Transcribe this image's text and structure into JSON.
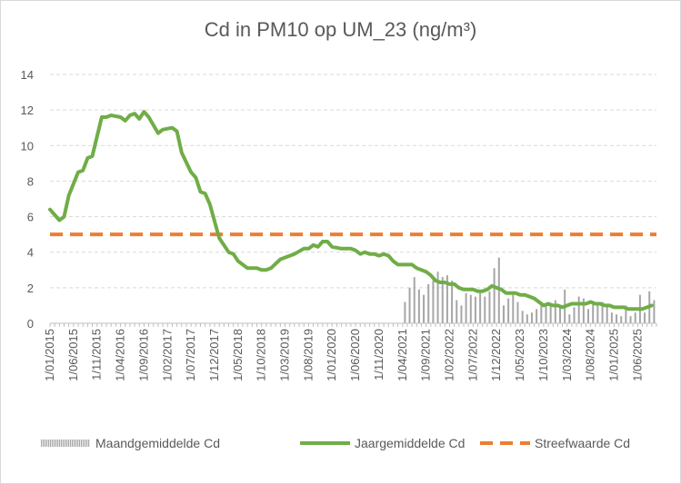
{
  "chart_data": {
    "type": "line",
    "title": "Cd in PM10 op UM_23 (ng/m³)",
    "xlabel": "",
    "ylabel": "",
    "ylim": [
      0,
      14
    ],
    "yticks": [
      0,
      2,
      4,
      6,
      8,
      10,
      12,
      14
    ],
    "grid": true,
    "legend_position": "bottom",
    "x_tick_labels": [
      "1/01/2015",
      "1/06/2015",
      "1/11/2015",
      "1/04/2016",
      "1/09/2016",
      "1/02/2017",
      "1/07/2017",
      "1/12/2017",
      "1/05/2018",
      "1/10/2018",
      "1/03/2019",
      "1/08/2019",
      "1/01/2020",
      "1/06/2020",
      "1/11/2020",
      "1/04/2021",
      "1/09/2021",
      "1/02/2022",
      "1/07/2022",
      "1/12/2022",
      "1/05/2023",
      "1/10/2023",
      "1/03/2024",
      "1/08/2024",
      "1/01/2025",
      "1/06/2025"
    ],
    "x_start": "2015-01",
    "x_end": "2025-09",
    "series": [
      {
        "name": "Maandgemiddelde Cd",
        "kind": "bar",
        "color": "#a6a6a6",
        "points": [
          [
            "2021-04",
            1.2
          ],
          [
            "2021-05",
            2.0
          ],
          [
            "2021-06",
            2.6
          ],
          [
            "2021-07",
            1.9
          ],
          [
            "2021-08",
            1.6
          ],
          [
            "2021-09",
            2.2
          ],
          [
            "2021-10",
            2.4
          ],
          [
            "2021-11",
            2.9
          ],
          [
            "2021-12",
            2.6
          ],
          [
            "2022-01",
            2.7
          ],
          [
            "2022-02",
            2.4
          ],
          [
            "2022-03",
            1.3
          ],
          [
            "2022-04",
            1.0
          ],
          [
            "2022-05",
            1.7
          ],
          [
            "2022-06",
            1.6
          ],
          [
            "2022-07",
            1.5
          ],
          [
            "2022-08",
            1.7
          ],
          [
            "2022-09",
            1.5
          ],
          [
            "2022-10",
            1.8
          ],
          [
            "2022-11",
            3.1
          ],
          [
            "2022-12",
            3.7
          ],
          [
            "2022-13",
            1.0
          ],
          [
            "2023-01",
            1.0
          ],
          [
            "2023-02",
            1.4
          ],
          [
            "2023-03",
            1.7
          ],
          [
            "2023-04",
            1.2
          ],
          [
            "2023-05",
            0.7
          ],
          [
            "2023-06",
            0.5
          ],
          [
            "2023-07",
            0.6
          ],
          [
            "2023-08",
            0.8
          ],
          [
            "2023-09",
            1.1
          ],
          [
            "2023-10",
            1.0
          ],
          [
            "2023-11",
            1.1
          ],
          [
            "2023-12",
            1.3
          ],
          [
            "2024-01",
            1.0
          ],
          [
            "2024-02",
            1.9
          ],
          [
            "2024-03",
            0.5
          ],
          [
            "2024-04",
            0.9
          ],
          [
            "2024-05",
            1.5
          ],
          [
            "2024-06",
            1.4
          ],
          [
            "2024-07",
            0.8
          ],
          [
            "2024-08",
            1.1
          ],
          [
            "2024-09",
            1.0
          ],
          [
            "2024-10",
            1.2
          ],
          [
            "2024-11",
            1.0
          ],
          [
            "2024-12",
            0.6
          ],
          [
            "2025-01",
            0.5
          ],
          [
            "2025-02",
            0.4
          ],
          [
            "2025-03",
            1.0
          ],
          [
            "2025-04",
            0.4
          ],
          [
            "2025-05",
            0.6
          ],
          [
            "2025-06",
            1.6
          ],
          [
            "2025-07",
            0.6
          ],
          [
            "2025-08",
            1.8
          ],
          [
            "2025-09",
            1.3
          ]
        ]
      },
      {
        "name": "Jaargemiddelde Cd",
        "kind": "line",
        "color": "#70ad47",
        "points": [
          [
            "2015-01",
            6.4
          ],
          [
            "2015-03",
            5.8
          ],
          [
            "2015-04",
            6.0
          ],
          [
            "2015-05",
            7.2
          ],
          [
            "2015-07",
            8.5
          ],
          [
            "2015-08",
            8.6
          ],
          [
            "2015-09",
            9.3
          ],
          [
            "2015-10",
            9.4
          ],
          [
            "2015-12",
            11.6
          ],
          [
            "2016-01",
            11.6
          ],
          [
            "2016-02",
            11.7
          ],
          [
            "2016-04",
            11.6
          ],
          [
            "2016-05",
            11.4
          ],
          [
            "2016-06",
            11.7
          ],
          [
            "2016-07",
            11.8
          ],
          [
            "2016-08",
            11.5
          ],
          [
            "2016-09",
            11.9
          ],
          [
            "2016-10",
            11.6
          ],
          [
            "2016-12",
            10.7
          ],
          [
            "2017-01",
            10.9
          ],
          [
            "2017-03",
            11.0
          ],
          [
            "2017-04",
            10.8
          ],
          [
            "2017-05",
            9.6
          ],
          [
            "2017-07",
            8.5
          ],
          [
            "2017-08",
            8.2
          ],
          [
            "2017-09",
            7.4
          ],
          [
            "2017-10",
            7.3
          ],
          [
            "2017-11",
            6.7
          ],
          [
            "2018-01",
            4.8
          ],
          [
            "2018-03",
            4.0
          ],
          [
            "2018-04",
            3.9
          ],
          [
            "2018-05",
            3.5
          ],
          [
            "2018-07",
            3.1
          ],
          [
            "2018-08",
            3.1
          ],
          [
            "2018-09",
            3.1
          ],
          [
            "2018-10",
            3.0
          ],
          [
            "2018-11",
            3.0
          ],
          [
            "2018-12",
            3.1
          ],
          [
            "2019-02",
            3.6
          ],
          [
            "2019-03",
            3.7
          ],
          [
            "2019-04",
            3.8
          ],
          [
            "2019-05",
            3.9
          ],
          [
            "2019-07",
            4.2
          ],
          [
            "2019-08",
            4.2
          ],
          [
            "2019-09",
            4.4
          ],
          [
            "2019-10",
            4.3
          ],
          [
            "2019-11",
            4.6
          ],
          [
            "2019-12",
            4.6
          ],
          [
            "2020-01",
            4.3
          ],
          [
            "2020-03",
            4.2
          ],
          [
            "2020-04",
            4.2
          ],
          [
            "2020-05",
            4.2
          ],
          [
            "2020-06",
            4.1
          ],
          [
            "2020-07",
            3.9
          ],
          [
            "2020-08",
            4.0
          ],
          [
            "2020-09",
            3.9
          ],
          [
            "2020-10",
            3.9
          ],
          [
            "2020-11",
            3.8
          ],
          [
            "2020-12",
            3.9
          ],
          [
            "2021-01",
            3.8
          ],
          [
            "2021-02",
            3.5
          ],
          [
            "2021-03",
            3.3
          ],
          [
            "2021-04",
            3.3
          ],
          [
            "2021-05",
            3.3
          ],
          [
            "2021-06",
            3.3
          ],
          [
            "2021-07",
            3.1
          ],
          [
            "2021-09",
            2.9
          ],
          [
            "2021-10",
            2.7
          ],
          [
            "2021-11",
            2.4
          ],
          [
            "2021-12",
            2.3
          ],
          [
            "2022-01",
            2.3
          ],
          [
            "2022-02",
            2.2
          ],
          [
            "2022-03",
            2.2
          ],
          [
            "2022-04",
            2.0
          ],
          [
            "2022-05",
            1.9
          ],
          [
            "2022-06",
            1.9
          ],
          [
            "2022-07",
            1.9
          ],
          [
            "2022-08",
            1.8
          ],
          [
            "2022-09",
            1.8
          ],
          [
            "2022-10",
            1.9
          ],
          [
            "2022-11",
            2.1
          ],
          [
            "2022-12",
            2.0
          ],
          [
            "2023-01",
            1.9
          ],
          [
            "2023-02",
            1.7
          ],
          [
            "2023-03",
            1.7
          ],
          [
            "2023-04",
            1.7
          ],
          [
            "2023-05",
            1.6
          ],
          [
            "2023-06",
            1.6
          ],
          [
            "2023-07",
            1.5
          ],
          [
            "2023-08",
            1.4
          ],
          [
            "2023-09",
            1.2
          ],
          [
            "2023-10",
            1.0
          ],
          [
            "2023-11",
            1.1
          ],
          [
            "2023-12",
            1.0
          ],
          [
            "2024-01",
            1.0
          ],
          [
            "2024-02",
            0.9
          ],
          [
            "2024-03",
            1.0
          ],
          [
            "2024-04",
            1.1
          ],
          [
            "2024-05",
            1.1
          ],
          [
            "2024-06",
            1.1
          ],
          [
            "2024-07",
            1.1
          ],
          [
            "2024-08",
            1.2
          ],
          [
            "2024-09",
            1.1
          ],
          [
            "2024-10",
            1.1
          ],
          [
            "2024-11",
            1.0
          ],
          [
            "2024-12",
            1.0
          ],
          [
            "2025-01",
            0.9
          ],
          [
            "2025-02",
            0.9
          ],
          [
            "2025-03",
            0.9
          ],
          [
            "2025-04",
            0.8
          ],
          [
            "2025-05",
            0.8
          ],
          [
            "2025-06",
            0.8
          ],
          [
            "2025-07",
            0.8
          ],
          [
            "2025-08",
            0.9
          ],
          [
            "2025-09",
            1.0
          ]
        ]
      },
      {
        "name": "Streefwaarde Cd",
        "kind": "dashed-line",
        "color": "#ed7d31",
        "points": [
          [
            "2015-01",
            5.0
          ],
          [
            "2025-09",
            5.0
          ]
        ]
      }
    ]
  }
}
